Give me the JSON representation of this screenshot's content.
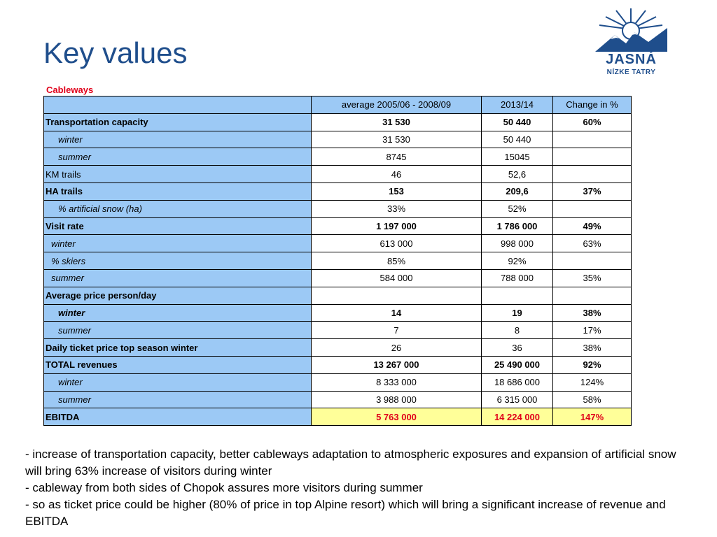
{
  "slide": {
    "title": "Key values",
    "caption": "Cableways",
    "logo": {
      "name": "JASNÁ",
      "sub": "NÍZKE TATRY"
    }
  },
  "table": {
    "headers": [
      "",
      "average 2005/06 - 2008/09",
      "2013/14",
      "Change in %"
    ],
    "rows": [
      {
        "label": "Transportation capacity",
        "v1": "31 530",
        "v2": "50 440",
        "v3": "60%"
      },
      {
        "label": "winter",
        "v1": "31 530",
        "v2": "50 440",
        "v3": ""
      },
      {
        "label": "summer",
        "v1": "8745",
        "v2": "15045",
        "v3": ""
      },
      {
        "label": "KM trails",
        "v1": "46",
        "v2": "52,6",
        "v3": ""
      },
      {
        "label": "HA trails",
        "v1": "153",
        "v2": "209,6",
        "v3": "37%"
      },
      {
        "label": "% artificial snow (ha)",
        "v1": "33%",
        "v2": "52%",
        "v3": ""
      },
      {
        "label": "Visit rate",
        "v1": "1 197 000",
        "v2": "1 786 000",
        "v3": "49%"
      },
      {
        "label": "winter",
        "v1": "613 000",
        "v2": "998 000",
        "v3": "63%"
      },
      {
        "label": "% skiers",
        "v1": "85%",
        "v2": "92%",
        "v3": ""
      },
      {
        "label": "summer",
        "v1": "584 000",
        "v2": "788 000",
        "v3": "35%"
      },
      {
        "label": "Average price person/day",
        "v1": "",
        "v2": "",
        "v3": ""
      },
      {
        "label": "winter",
        "v1": "14",
        "v2": "19",
        "v3": "38%"
      },
      {
        "label": "summer",
        "v1": "7",
        "v2": "8",
        "v3": "17%"
      },
      {
        "label": "Daily ticket price top season winter",
        "v1": "26",
        "v2": "36",
        "v3": "38%"
      },
      {
        "label": "TOTAL revenues",
        "v1": "13 267 000",
        "v2": "25 490 000",
        "v3": "92%"
      },
      {
        "label": "winter",
        "v1": "8 333 000",
        "v2": "18 686 000",
        "v3": "124%"
      },
      {
        "label": "summer",
        "v1": "3 988 000",
        "v2": "6 315 000",
        "v3": "58%"
      },
      {
        "label": "EBITDA",
        "v1": "5 763 000",
        "v2": "14 224 000",
        "v3": "147%"
      }
    ]
  },
  "notes": [
    "- increase of transportation capacity, better cableways adaptation to atmospheric exposures and expansion of artificial snow will bring 63% increase of visitors during winter",
    "- cableway from both sides of Chopok assures more visitors during summer",
    "- so as ticket price could be higher (80% of price in top Alpine resort) which will bring a significant increase of  revenue and EBITDA"
  ],
  "colors": {
    "title": "#1f4e8c",
    "accent": "#e0001a",
    "label_bg": "#9cc9f5",
    "highlight_bg": "#ffff99"
  }
}
